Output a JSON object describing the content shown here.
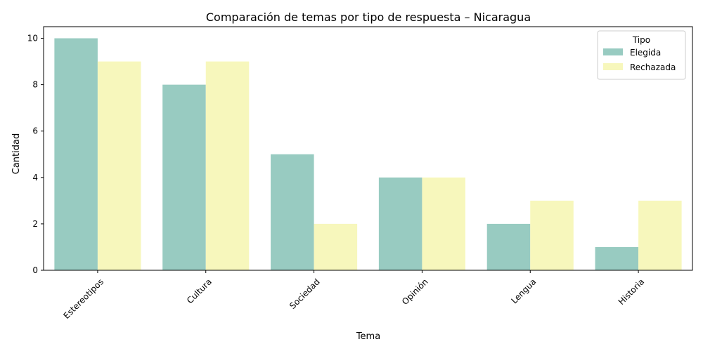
{
  "chart_data": {
    "type": "bar",
    "title": "Comparación de temas por tipo de respuesta – Nicaragua",
    "xlabel": "Tema",
    "ylabel": "Cantidad",
    "categories": [
      "Estereotipos",
      "Cultura",
      "Sociedad",
      "Opinión",
      "Lengua",
      "Historia"
    ],
    "series": [
      {
        "name": "Elegida",
        "values": [
          10,
          8,
          5,
          4,
          2,
          1
        ],
        "color": "#98CBC1"
      },
      {
        "name": "Rechazada",
        "values": [
          9,
          9,
          2,
          4,
          3,
          3
        ],
        "color": "#F7F7BC"
      }
    ],
    "ylim": [
      0,
      10.5
    ],
    "yticks": [
      0,
      2,
      4,
      6,
      8,
      10
    ],
    "legend": {
      "title": "Tipo",
      "placement": "top-right"
    },
    "grid": false
  }
}
